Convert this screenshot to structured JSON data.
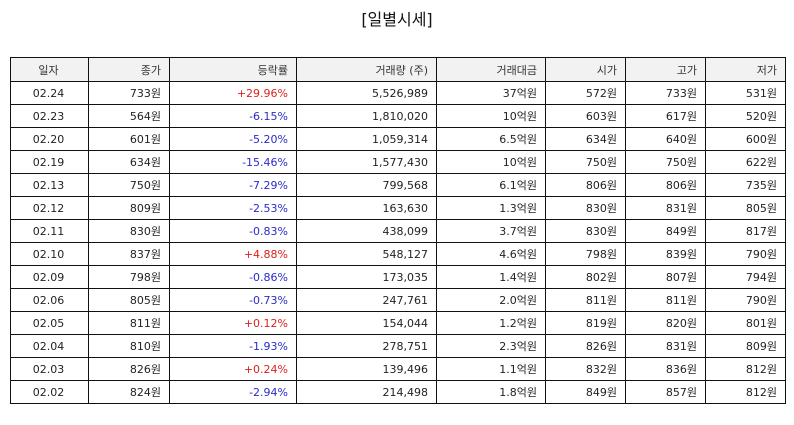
{
  "title": "[일별시세]",
  "columns": [
    "일자",
    "종가",
    "등락률",
    "거래량 (주)",
    "거래대금",
    "시가",
    "고가",
    "저가"
  ],
  "rows": [
    {
      "date": "02.24",
      "close": "733원",
      "change": "+29.96%",
      "dir": "up",
      "volume": "5,526,989",
      "amount": "37억원",
      "open": "572원",
      "high": "733원",
      "low": "531원"
    },
    {
      "date": "02.23",
      "close": "564원",
      "change": "-6.15%",
      "dir": "down",
      "volume": "1,810,020",
      "amount": "10억원",
      "open": "603원",
      "high": "617원",
      "low": "520원"
    },
    {
      "date": "02.20",
      "close": "601원",
      "change": "-5.20%",
      "dir": "down",
      "volume": "1,059,314",
      "amount": "6.5억원",
      "open": "634원",
      "high": "640원",
      "low": "600원"
    },
    {
      "date": "02.19",
      "close": "634원",
      "change": "-15.46%",
      "dir": "down",
      "volume": "1,577,430",
      "amount": "10억원",
      "open": "750원",
      "high": "750원",
      "low": "622원"
    },
    {
      "date": "02.13",
      "close": "750원",
      "change": "-7.29%",
      "dir": "down",
      "volume": "799,568",
      "amount": "6.1억원",
      "open": "806원",
      "high": "806원",
      "low": "735원"
    },
    {
      "date": "02.12",
      "close": "809원",
      "change": "-2.53%",
      "dir": "down",
      "volume": "163,630",
      "amount": "1.3억원",
      "open": "830원",
      "high": "831원",
      "low": "805원"
    },
    {
      "date": "02.11",
      "close": "830원",
      "change": "-0.83%",
      "dir": "down",
      "volume": "438,099",
      "amount": "3.7억원",
      "open": "830원",
      "high": "849원",
      "low": "817원"
    },
    {
      "date": "02.10",
      "close": "837원",
      "change": "+4.88%",
      "dir": "up",
      "volume": "548,127",
      "amount": "4.6억원",
      "open": "798원",
      "high": "839원",
      "low": "790원"
    },
    {
      "date": "02.09",
      "close": "798원",
      "change": "-0.86%",
      "dir": "down",
      "volume": "173,035",
      "amount": "1.4억원",
      "open": "802원",
      "high": "807원",
      "low": "794원"
    },
    {
      "date": "02.06",
      "close": "805원",
      "change": "-0.73%",
      "dir": "down",
      "volume": "247,761",
      "amount": "2.0억원",
      "open": "811원",
      "high": "811원",
      "low": "790원"
    },
    {
      "date": "02.05",
      "close": "811원",
      "change": "+0.12%",
      "dir": "up",
      "volume": "154,044",
      "amount": "1.2억원",
      "open": "819원",
      "high": "820원",
      "low": "801원"
    },
    {
      "date": "02.04",
      "close": "810원",
      "change": "-1.93%",
      "dir": "down",
      "volume": "278,751",
      "amount": "2.3억원",
      "open": "826원",
      "high": "831원",
      "low": "809원"
    },
    {
      "date": "02.03",
      "close": "826원",
      "change": "+0.24%",
      "dir": "up",
      "volume": "139,496",
      "amount": "1.1억원",
      "open": "832원",
      "high": "836원",
      "low": "812원"
    },
    {
      "date": "02.02",
      "close": "824원",
      "change": "-2.94%",
      "dir": "down",
      "volume": "214,498",
      "amount": "1.8억원",
      "open": "849원",
      "high": "857원",
      "low": "812원"
    }
  ],
  "colors": {
    "up": "#e0201c",
    "down": "#2b2bc9",
    "header_bg": "#f2f2f2",
    "border": "#111111"
  }
}
